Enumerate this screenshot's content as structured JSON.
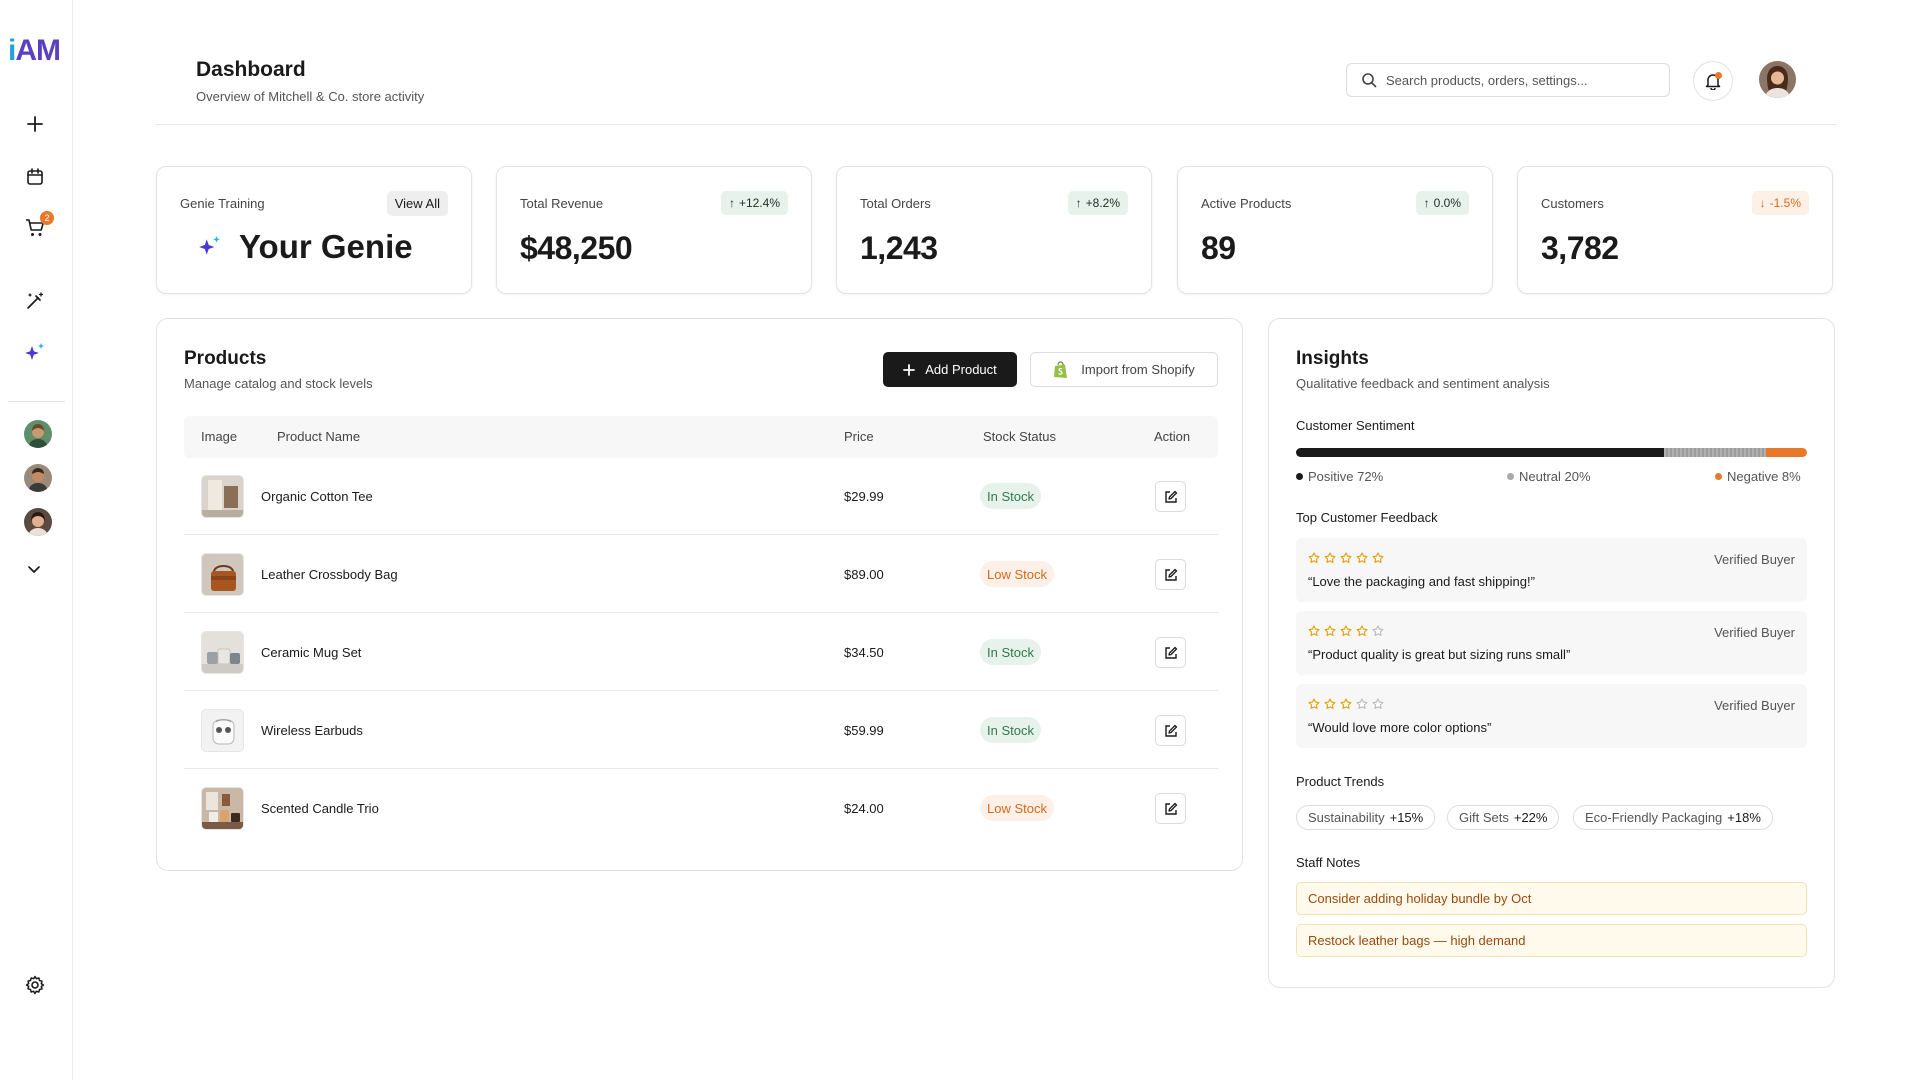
{
  "sidebar": {
    "logo_part1": "i",
    "logo_part2": "AM",
    "cart_badge": "2",
    "icons": [
      "plus-icon",
      "calendar-icon",
      "cart-icon",
      "magic-wand-icon",
      "sparkles-icon",
      "chevron-down-icon",
      "gear-icon"
    ]
  },
  "header": {
    "title": "Dashboard",
    "subtitle": "Overview of Mitchell & Co. store activity",
    "search_placeholder": "Search products, orders, settings..."
  },
  "stats": {
    "genie": {
      "label": "Genie Training",
      "button": "View All",
      "title": "Your Genie"
    },
    "revenue": {
      "label": "Total Revenue",
      "value": "$48,250",
      "change": "+12.4%",
      "direction": "up"
    },
    "orders": {
      "label": "Total Orders",
      "value": "1,243",
      "change": "+8.2%",
      "direction": "up"
    },
    "products": {
      "label": "Active Products",
      "value": "89",
      "change": "0.0%",
      "direction": "up"
    },
    "customers": {
      "label": "Customers",
      "value": "3,782",
      "change": "-1.5%",
      "direction": "down"
    }
  },
  "products": {
    "title": "Products",
    "subtitle": "Manage catalog and stock levels",
    "add_button": "Add Product",
    "import_button": "Import from Shopify",
    "columns": {
      "image": "Image",
      "name": "Product Name",
      "price": "Price",
      "stock": "Stock Status",
      "action": "Action"
    },
    "rows": [
      {
        "name": "Organic Cotton Tee",
        "price": "$29.99",
        "stock": "In Stock"
      },
      {
        "name": "Leather Crossbody Bag",
        "price": "$89.00",
        "stock": "Low Stock"
      },
      {
        "name": "Ceramic Mug Set",
        "price": "$34.50",
        "stock": "In Stock"
      },
      {
        "name": "Wireless Earbuds",
        "price": "$59.99",
        "stock": "In Stock"
      },
      {
        "name": "Scented Candle Trio",
        "price": "$24.00",
        "stock": "Low Stock"
      }
    ]
  },
  "insights": {
    "title": "Insights",
    "subtitle": "Qualitative feedback and sentiment analysis",
    "sentiment_label": "Customer Sentiment",
    "sentiment": {
      "positive": {
        "label": "Positive 72%",
        "value": 72,
        "color": "#1a1a1a"
      },
      "neutral": {
        "label": "Neutral 20%",
        "value": 20,
        "color": "#a8a8a8"
      },
      "negative": {
        "label": "Negative 8%",
        "value": 8,
        "color": "#e8792a"
      }
    },
    "feedback_label": "Top Customer Feedback",
    "feedback": [
      {
        "rating": 5,
        "source": "Verified Buyer",
        "quote": "“Love the packaging and fast shipping!”"
      },
      {
        "rating": 4,
        "source": "Verified Buyer",
        "quote": "“Product quality is great but sizing runs small”"
      },
      {
        "rating": 3,
        "source": "Verified Buyer",
        "quote": "“Would love more color options”"
      }
    ],
    "trends_label": "Product Trends",
    "trends": [
      {
        "name": "Sustainability",
        "change": "+15%"
      },
      {
        "name": "Gift Sets",
        "change": "+22%"
      },
      {
        "name": "Eco-Friendly Packaging",
        "change": "+18%"
      }
    ],
    "notes_label": "Staff Notes",
    "notes": [
      "Consider adding holiday bundle by Oct",
      "Restock leather bags — high demand"
    ]
  },
  "colors": {
    "accent_orange": "#e8792a",
    "positive_green": "#2f7a4c",
    "dark": "#1a1a1a"
  }
}
